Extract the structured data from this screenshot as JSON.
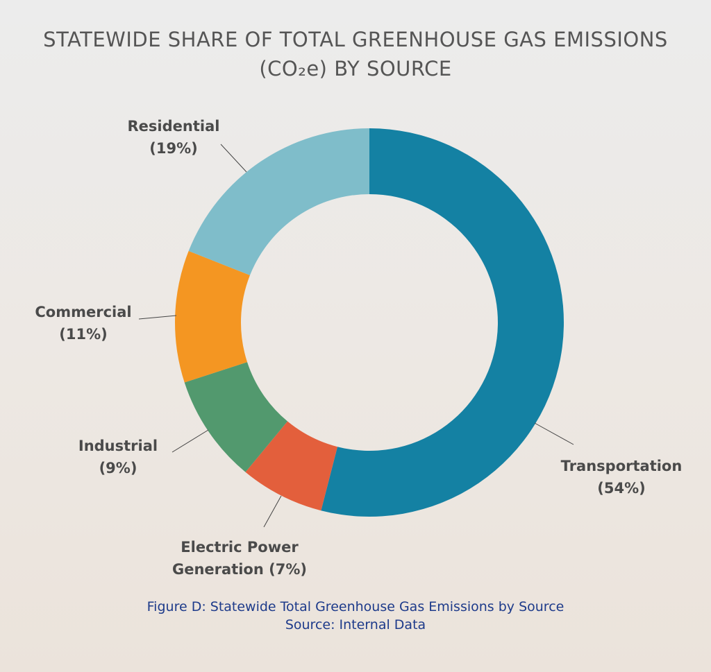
{
  "chart_data": {
    "type": "donut",
    "title": "STATEWIDE SHARE OF TOTAL GREENHOUSE GAS EMISSIONS (CO₂e) BY SOURCE",
    "categories": [
      "Transportation",
      "Electric Power Generation",
      "Industrial",
      "Commercial",
      "Residential"
    ],
    "values": [
      54,
      7,
      9,
      11,
      19
    ],
    "value_labels": [
      "(54%)",
      "(7%)",
      "(9%)",
      "(11%)",
      "(19%)"
    ],
    "colors": [
      "#1481a3",
      "#e35f3c",
      "#52996e",
      "#f49622",
      "#7fbdca"
    ],
    "caption": [
      "Figure D: Statewide Total Greenhouse Gas Emissions by Source",
      "Source: Internal Data"
    ]
  }
}
